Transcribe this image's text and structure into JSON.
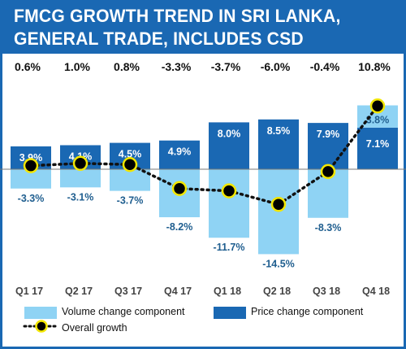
{
  "title": {
    "line1": "FMCG GROWTH TREND IN SRI LANKA,",
    "line2": "GENERAL TRADE, INCLUDES CSD"
  },
  "colors": {
    "header": "#1a68b3",
    "price": "#1a68b3",
    "volume": "#8fd3f4",
    "marker_fill": "#000000",
    "marker_ring": "#f2e600"
  },
  "legend": {
    "volume": "Volume change component",
    "price": "Price change component",
    "overall": "Overall growth",
    "placement": "bottom"
  },
  "chart_data": {
    "type": "bar",
    "stacked": true,
    "categories": [
      "Q1 17",
      "Q2 17",
      "Q3 17",
      "Q4 17",
      "Q1 18",
      "Q2 18",
      "Q3 18",
      "Q4 18"
    ],
    "series": [
      {
        "name": "Volume change component",
        "kind": "bar",
        "values": [
          -3.3,
          -3.1,
          -3.7,
          -8.2,
          -11.7,
          -14.5,
          -8.3,
          3.8
        ],
        "labels": [
          "-3.3%",
          "-3.1%",
          "-3.7%",
          "-8.2%",
          "-11.7%",
          "-14.5%",
          "-8.3%",
          "3.8%"
        ]
      },
      {
        "name": "Price change component",
        "kind": "bar",
        "values": [
          3.9,
          4.1,
          4.5,
          4.9,
          8.0,
          8.5,
          7.9,
          7.1
        ],
        "labels": [
          "3.9%",
          "4.1%",
          "4.5%",
          "4.9%",
          "8.0%",
          "8.5%",
          "7.9%",
          "7.1%"
        ]
      },
      {
        "name": "Overall growth",
        "kind": "line",
        "values": [
          0.6,
          1.0,
          0.8,
          -3.3,
          -3.7,
          -6.0,
          -0.4,
          10.8
        ],
        "labels": [
          "0.6%",
          "1.0%",
          "0.8%",
          "-3.3%",
          "-3.7%",
          "-6.0%",
          "-0.4%",
          "10.8%"
        ]
      }
    ],
    "grid": false
  }
}
